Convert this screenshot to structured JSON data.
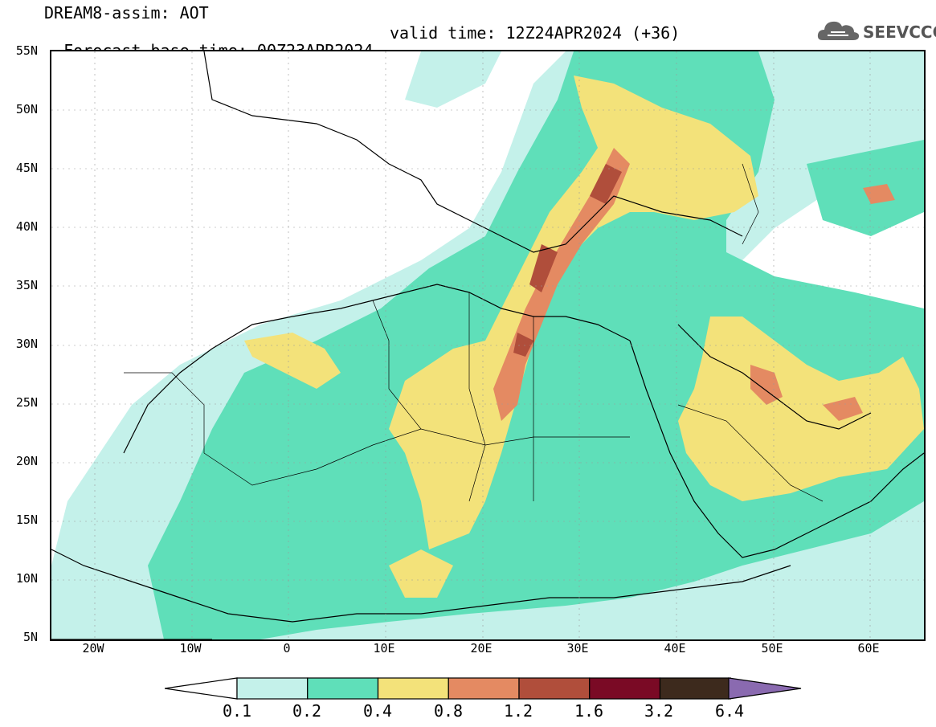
{
  "title_line1": "DREAM8-assim: AOT",
  "title_base": "Forecast base time: 00Z23APR2024",
  "title_valid": "valid time: 12Z24APR2024 (+36)",
  "logo_text": "SEEVCCC",
  "lat_labels": [
    "55N",
    "50N",
    "45N",
    "40N",
    "35N",
    "30N",
    "25N",
    "20N",
    "15N",
    "10N",
    "5N"
  ],
  "lon_labels": [
    "20W",
    "10W",
    "0",
    "10E",
    "20E",
    "30E",
    "40E",
    "50E",
    "60E"
  ],
  "colorbar": {
    "labels": [
      "0.1",
      "0.2",
      "0.4",
      "0.8",
      "1.2",
      "1.6",
      "3.2",
      "6.4"
    ],
    "colors": [
      "#c4f1ea",
      "#5fdfb9",
      "#f3e27a",
      "#e48a62",
      "#b04e3b",
      "#7a0a25",
      "#3d2a1d",
      "#8a6ab0"
    ]
  }
}
